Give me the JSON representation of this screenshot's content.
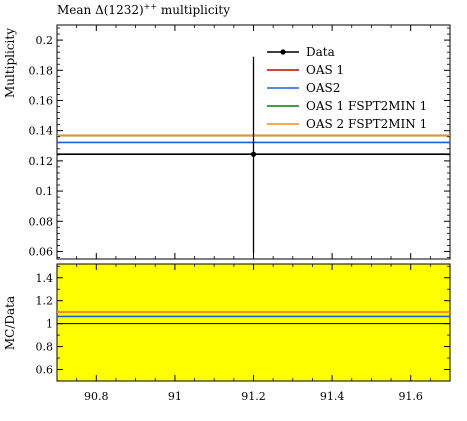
{
  "chart_data": [
    {
      "type": "line",
      "title_main": "Mean Δ(1232)",
      "title_sup": "++",
      "title_rest": " multiplicity",
      "ylabel": "Multiplicity",
      "xlim": [
        90.7,
        91.7
      ],
      "ylim": [
        0.055,
        0.21
      ],
      "yticks": [
        0.06,
        0.08,
        0.1,
        0.12,
        0.14,
        0.16,
        0.18,
        0.2
      ],
      "ytick_labels": [
        "0.06",
        "0.08",
        "0.1",
        "0.12",
        "0.14",
        "0.16",
        "0.18",
        "0.2"
      ],
      "legend_position": "top-right",
      "data_point": {
        "name": "Data",
        "x": 91.2,
        "y": 0.1244,
        "yerr_low": 0.0654,
        "yerr_high": 0.0646
      },
      "series": [
        {
          "name": "Data",
          "value": 0.1244,
          "color": "#000000",
          "marker": "point"
        },
        {
          "name": "OAS 1",
          "value": 0.1368,
          "color": "#cc0000"
        },
        {
          "name": "OAS2",
          "value": 0.1322,
          "color": "#1f5fd6"
        },
        {
          "name": "OAS 1 FSPT2MIN 1",
          "value": 0.1368,
          "color": "#008000"
        },
        {
          "name": "OAS 2 FSPT2MIN 1",
          "value": 0.1368,
          "color": "#ff8c1a"
        }
      ]
    },
    {
      "type": "line",
      "ylabel": "MC/Data",
      "xlim": [
        90.7,
        91.7
      ],
      "ylim": [
        0.5,
        1.52
      ],
      "band": {
        "low": 0.5,
        "high": 1.52,
        "color": "#ffff00"
      },
      "yticks": [
        0.6,
        0.8,
        1.0,
        1.2,
        1.4
      ],
      "ytick_labels": [
        "0.6",
        "0.8",
        "1",
        "1.2",
        "1.4"
      ],
      "xticks": [
        90.8,
        91.0,
        91.2,
        91.4,
        91.6
      ],
      "xtick_labels": [
        "90.8",
        "91",
        "91.2",
        "91.4",
        "91.6"
      ],
      "series": [
        {
          "name": "Data",
          "value": 1.0,
          "color": "#000000"
        },
        {
          "name": "OAS 1",
          "value": 1.1,
          "color": "#cc0000"
        },
        {
          "name": "OAS2",
          "value": 1.063,
          "color": "#1f5fd6"
        },
        {
          "name": "OAS 1 FSPT2MIN 1",
          "value": 1.1,
          "color": "#008000"
        },
        {
          "name": "OAS 2 FSPT2MIN 1",
          "value": 1.1,
          "color": "#ff8c1a"
        }
      ]
    }
  ]
}
